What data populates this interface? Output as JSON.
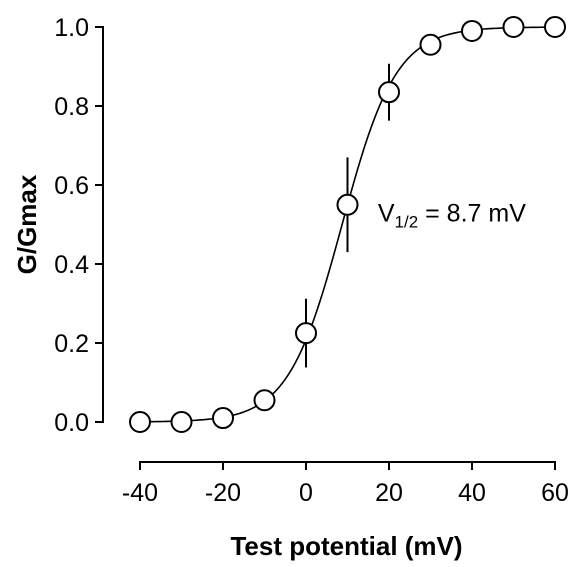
{
  "chart_data": {
    "type": "scatter",
    "xlabel": "Test potential (mV)",
    "ylabel": "G/Gmax",
    "xlim": [
      -40,
      60
    ],
    "ylim": [
      0,
      1
    ],
    "x_ticks": [
      "-40",
      "-20",
      "0",
      "20",
      "40",
      "60"
    ],
    "y_ticks": [
      "0.0",
      "0.2",
      "0.4",
      "0.6",
      "0.8",
      "1.0"
    ],
    "x_tick_values": [
      -40,
      -20,
      0,
      20,
      40,
      60
    ],
    "y_tick_values": [
      0,
      0.2,
      0.4,
      0.6,
      0.8,
      1.0
    ],
    "grid": false,
    "series": [
      {
        "x": [
          -40,
          -30,
          -20,
          -10,
          0,
          10,
          20,
          30,
          40,
          50,
          60
        ],
        "y": [
          0.0,
          0.0,
          0.01,
          0.055,
          0.225,
          0.55,
          0.835,
          0.955,
          0.99,
          1.0,
          1.0
        ],
        "error": [
          0,
          0,
          0,
          0,
          0.087,
          0.12,
          0.072,
          0,
          0,
          0,
          0
        ]
      }
    ],
    "fit": {
      "type": "boltzmann",
      "v_half": 8.7,
      "slope": 6.5
    },
    "annotation": {
      "main": "V",
      "sub": "1/2",
      "rest": " = 8.7 mV",
      "anchor_x": 19,
      "anchor_y": 0.53
    }
  }
}
